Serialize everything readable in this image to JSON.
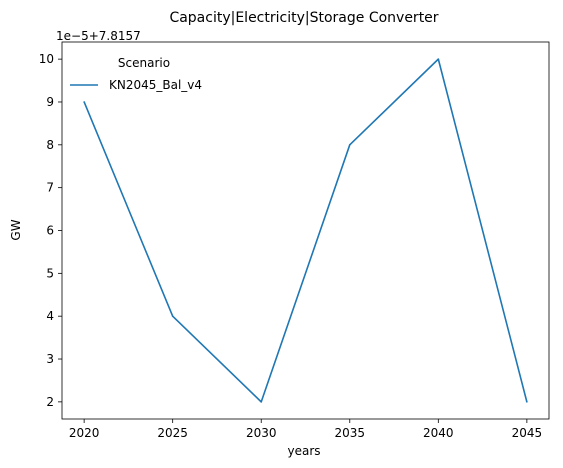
{
  "chart_data": {
    "type": "line",
    "title": "Capacity|Electricity|Storage Converter",
    "xlabel": "years",
    "ylabel": "GW",
    "offset_label": "1e−5+7.8157",
    "x": [
      2020,
      2025,
      2030,
      2035,
      2040,
      2045
    ],
    "xticks": [
      "2020",
      "2025",
      "2030",
      "2035",
      "2040",
      "2045"
    ],
    "yticks": [
      "2",
      "3",
      "4",
      "5",
      "6",
      "7",
      "8",
      "9",
      "10"
    ],
    "ylim": [
      1.6,
      10.4
    ],
    "xlim": [
      2018.75,
      2046.25
    ],
    "grid": false,
    "legend": {
      "title": "Scenario",
      "placement": "upper-left"
    },
    "series": [
      {
        "name": "KN2045_Bal_v4",
        "color": "#1f77b4",
        "values": [
          9,
          4,
          2,
          8,
          10,
          2
        ]
      }
    ]
  }
}
